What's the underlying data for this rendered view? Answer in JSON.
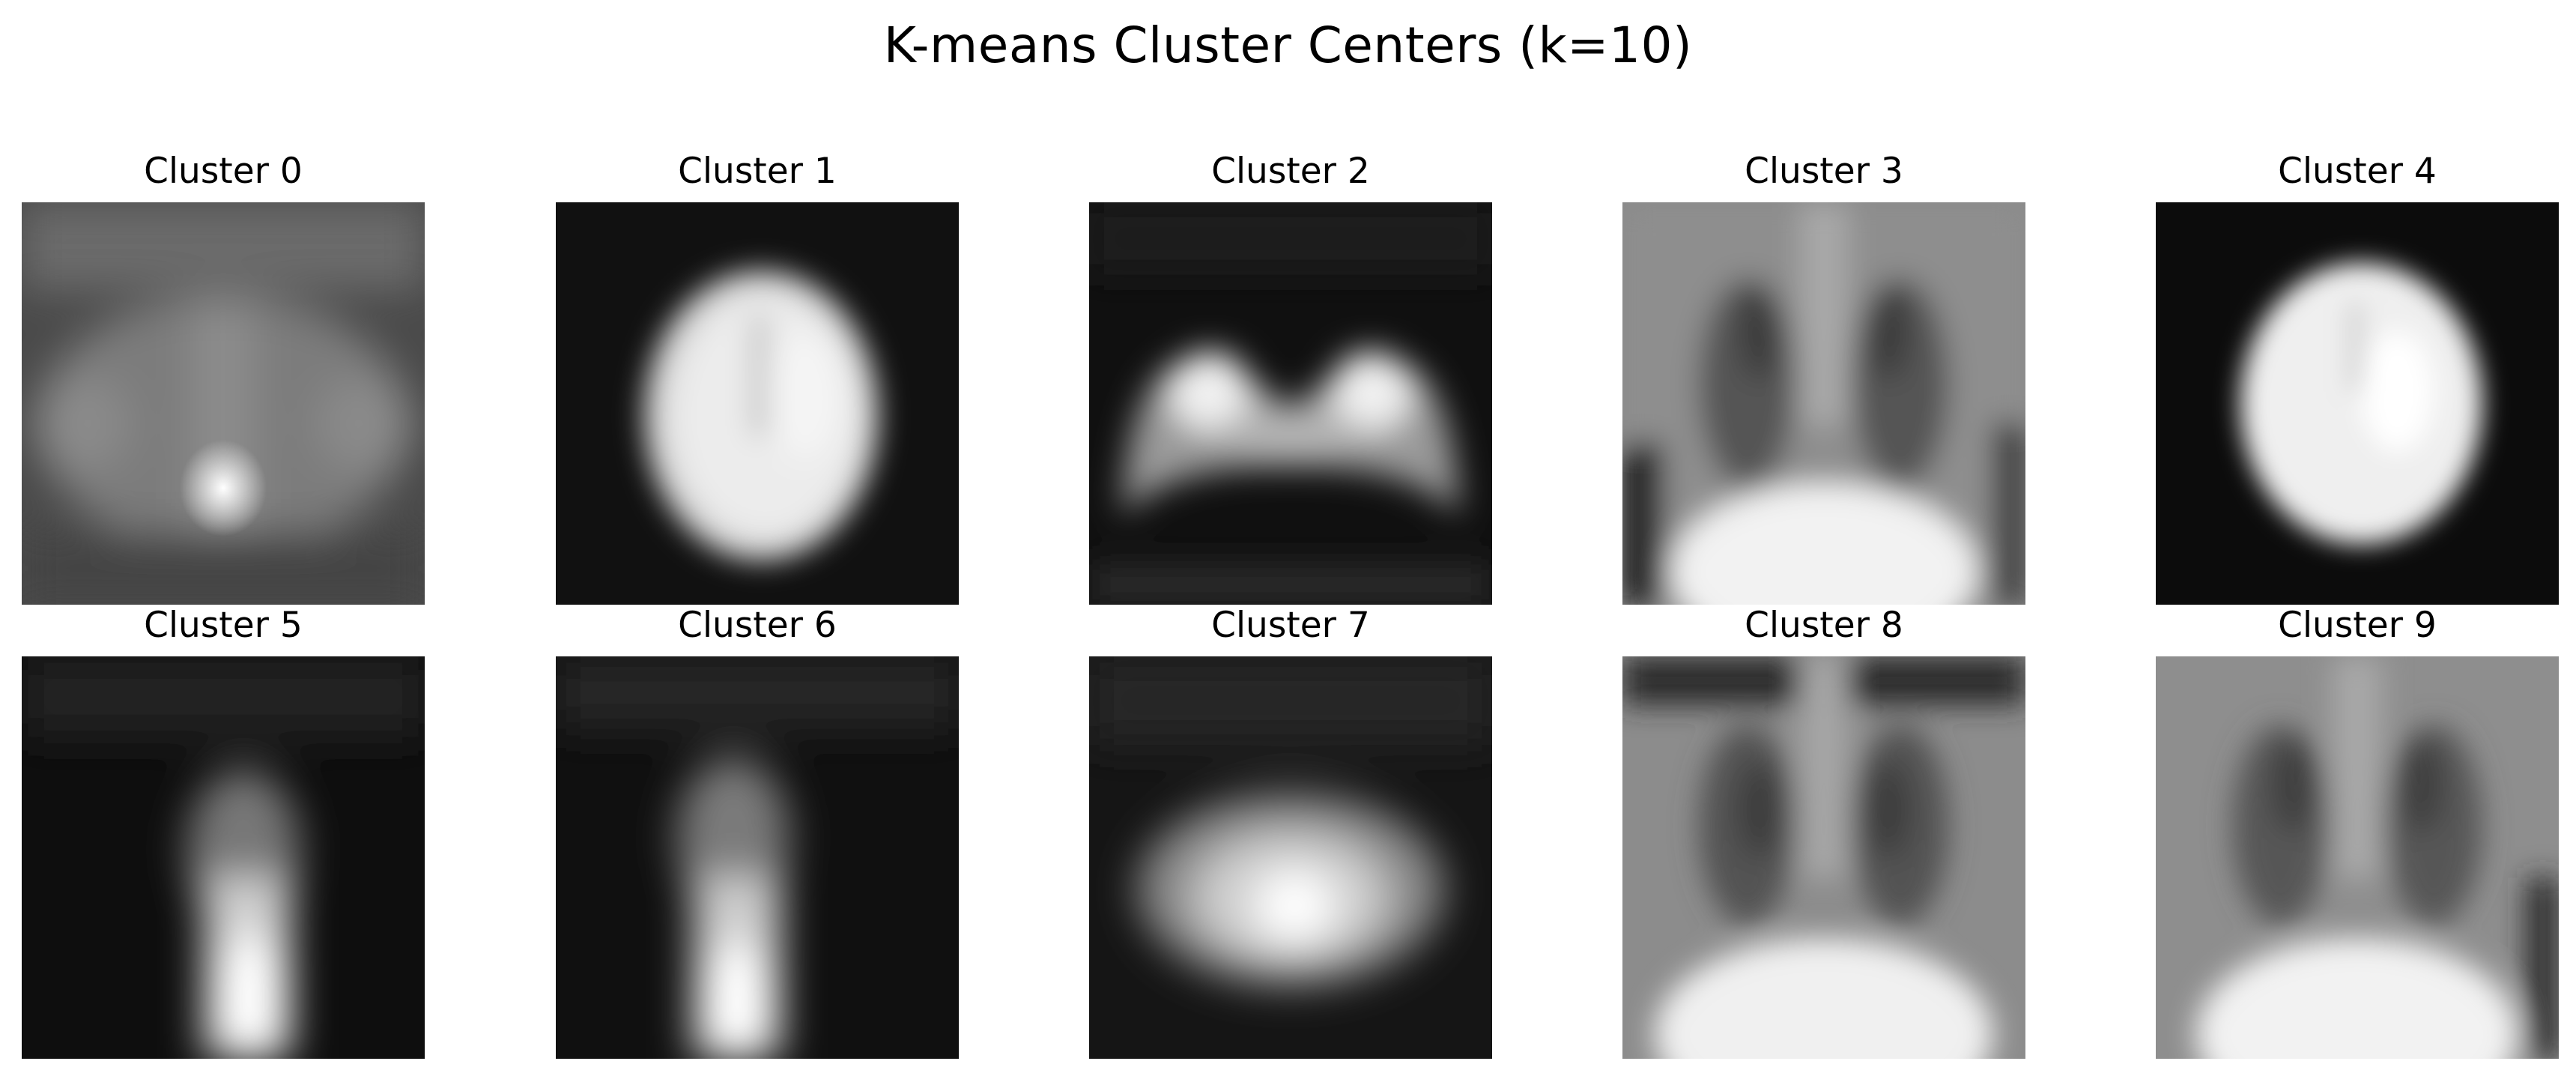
{
  "figure": {
    "title": "K-means Cluster Centers (k=10)"
  },
  "clusters": [
    {
      "label": "Cluster 0",
      "description_icon": "blurred-cluster-center-0"
    },
    {
      "label": "Cluster 1",
      "description_icon": "blurred-cluster-center-1"
    },
    {
      "label": "Cluster 2",
      "description_icon": "blurred-cluster-center-2"
    },
    {
      "label": "Cluster 3",
      "description_icon": "blurred-cluster-center-3"
    },
    {
      "label": "Cluster 4",
      "description_icon": "blurred-cluster-center-4"
    },
    {
      "label": "Cluster 5",
      "description_icon": "blurred-cluster-center-5"
    },
    {
      "label": "Cluster 6",
      "description_icon": "blurred-cluster-center-6"
    },
    {
      "label": "Cluster 7",
      "description_icon": "blurred-cluster-center-7"
    },
    {
      "label": "Cluster 8",
      "description_icon": "blurred-cluster-center-8"
    },
    {
      "label": "Cluster 9",
      "description_icon": "blurred-cluster-center-9"
    }
  ]
}
